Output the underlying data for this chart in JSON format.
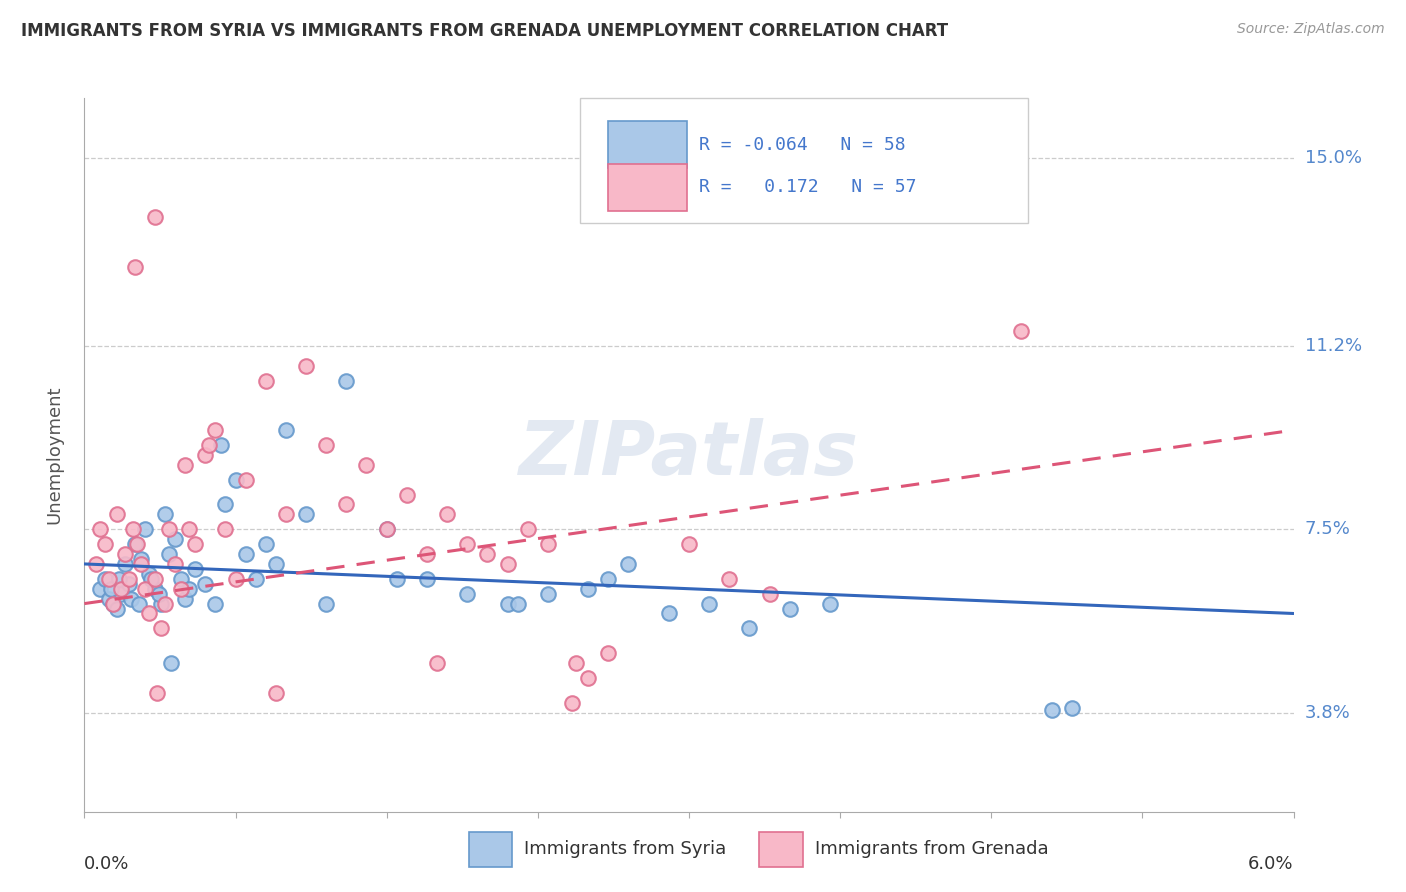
{
  "title": "IMMIGRANTS FROM SYRIA VS IMMIGRANTS FROM GRENADA UNEMPLOYMENT CORRELATION CHART",
  "source": "Source: ZipAtlas.com",
  "ylabel": "Unemployment",
  "yticks": [
    3.8,
    7.5,
    11.2,
    15.0
  ],
  "xmin": 0.0,
  "xmax": 6.0,
  "ymin": 1.8,
  "ymax": 16.2,
  "legend_label1": "Immigrants from Syria",
  "legend_label2": "Immigrants from Grenada",
  "syria_color_face": "#aac8e8",
  "syria_color_edge": "#6699cc",
  "grenada_color_face": "#f8b8c8",
  "grenada_color_edge": "#e07090",
  "syria_line_color": "#3366bb",
  "grenada_line_color": "#dd5577",
  "watermark": "ZIPatlas",
  "syria_scatter_x": [
    0.08,
    0.1,
    0.12,
    0.14,
    0.16,
    0.18,
    0.2,
    0.22,
    0.25,
    0.28,
    0.3,
    0.32,
    0.35,
    0.38,
    0.4,
    0.42,
    0.45,
    0.48,
    0.5,
    0.55,
    0.6,
    0.65,
    0.7,
    0.75,
    0.8,
    0.85,
    0.9,
    0.95,
    1.0,
    1.1,
    1.2,
    1.3,
    1.5,
    1.7,
    1.9,
    2.1,
    2.3,
    2.5,
    2.6,
    2.7,
    2.9,
    3.1,
    3.3,
    3.5,
    3.7,
    0.13,
    0.17,
    0.23,
    0.27,
    0.33,
    0.37,
    0.52,
    1.55,
    2.15,
    4.8,
    4.9,
    0.43,
    0.68
  ],
  "syria_scatter_y": [
    6.3,
    6.5,
    6.1,
    6.0,
    5.9,
    6.2,
    6.8,
    6.4,
    7.2,
    6.9,
    7.5,
    6.6,
    6.3,
    6.0,
    7.8,
    7.0,
    7.3,
    6.5,
    6.1,
    6.7,
    6.4,
    6.0,
    8.0,
    8.5,
    7.0,
    6.5,
    7.2,
    6.8,
    9.5,
    7.8,
    6.0,
    10.5,
    7.5,
    6.5,
    6.2,
    6.0,
    6.2,
    6.3,
    6.5,
    6.8,
    5.8,
    6.0,
    5.5,
    5.9,
    6.0,
    6.3,
    6.5,
    6.1,
    6.0,
    6.5,
    6.2,
    6.3,
    6.5,
    6.0,
    3.85,
    3.9,
    4.8,
    9.2
  ],
  "grenada_scatter_x": [
    0.06,
    0.08,
    0.1,
    0.12,
    0.14,
    0.16,
    0.18,
    0.2,
    0.22,
    0.24,
    0.26,
    0.28,
    0.3,
    0.32,
    0.35,
    0.38,
    0.4,
    0.42,
    0.45,
    0.48,
    0.5,
    0.55,
    0.6,
    0.65,
    0.7,
    0.75,
    0.8,
    0.9,
    1.0,
    1.1,
    1.2,
    1.3,
    1.4,
    1.5,
    1.6,
    1.7,
    1.8,
    1.9,
    2.0,
    2.1,
    2.2,
    2.3,
    2.5,
    2.6,
    3.0,
    3.2,
    3.4,
    4.65,
    0.35,
    0.25,
    0.36,
    2.42,
    0.62,
    1.75,
    0.95,
    2.44,
    0.52
  ],
  "grenada_scatter_y": [
    6.8,
    7.5,
    7.2,
    6.5,
    6.0,
    7.8,
    6.3,
    7.0,
    6.5,
    7.5,
    7.2,
    6.8,
    6.3,
    5.8,
    6.5,
    5.5,
    6.0,
    7.5,
    6.8,
    6.3,
    8.8,
    7.2,
    9.0,
    9.5,
    7.5,
    6.5,
    8.5,
    10.5,
    7.8,
    10.8,
    9.2,
    8.0,
    8.8,
    7.5,
    8.2,
    7.0,
    7.8,
    7.2,
    7.0,
    6.8,
    7.5,
    7.2,
    4.5,
    5.0,
    7.2,
    6.5,
    6.2,
    11.5,
    13.8,
    12.8,
    4.2,
    4.0,
    9.2,
    4.8,
    4.2,
    4.8,
    7.5
  ],
  "syria_trend_x": [
    0.0,
    6.0
  ],
  "syria_trend_y": [
    6.8,
    5.8
  ],
  "grenada_trend_x": [
    0.0,
    6.0
  ],
  "grenada_trend_y": [
    6.0,
    9.5
  ]
}
